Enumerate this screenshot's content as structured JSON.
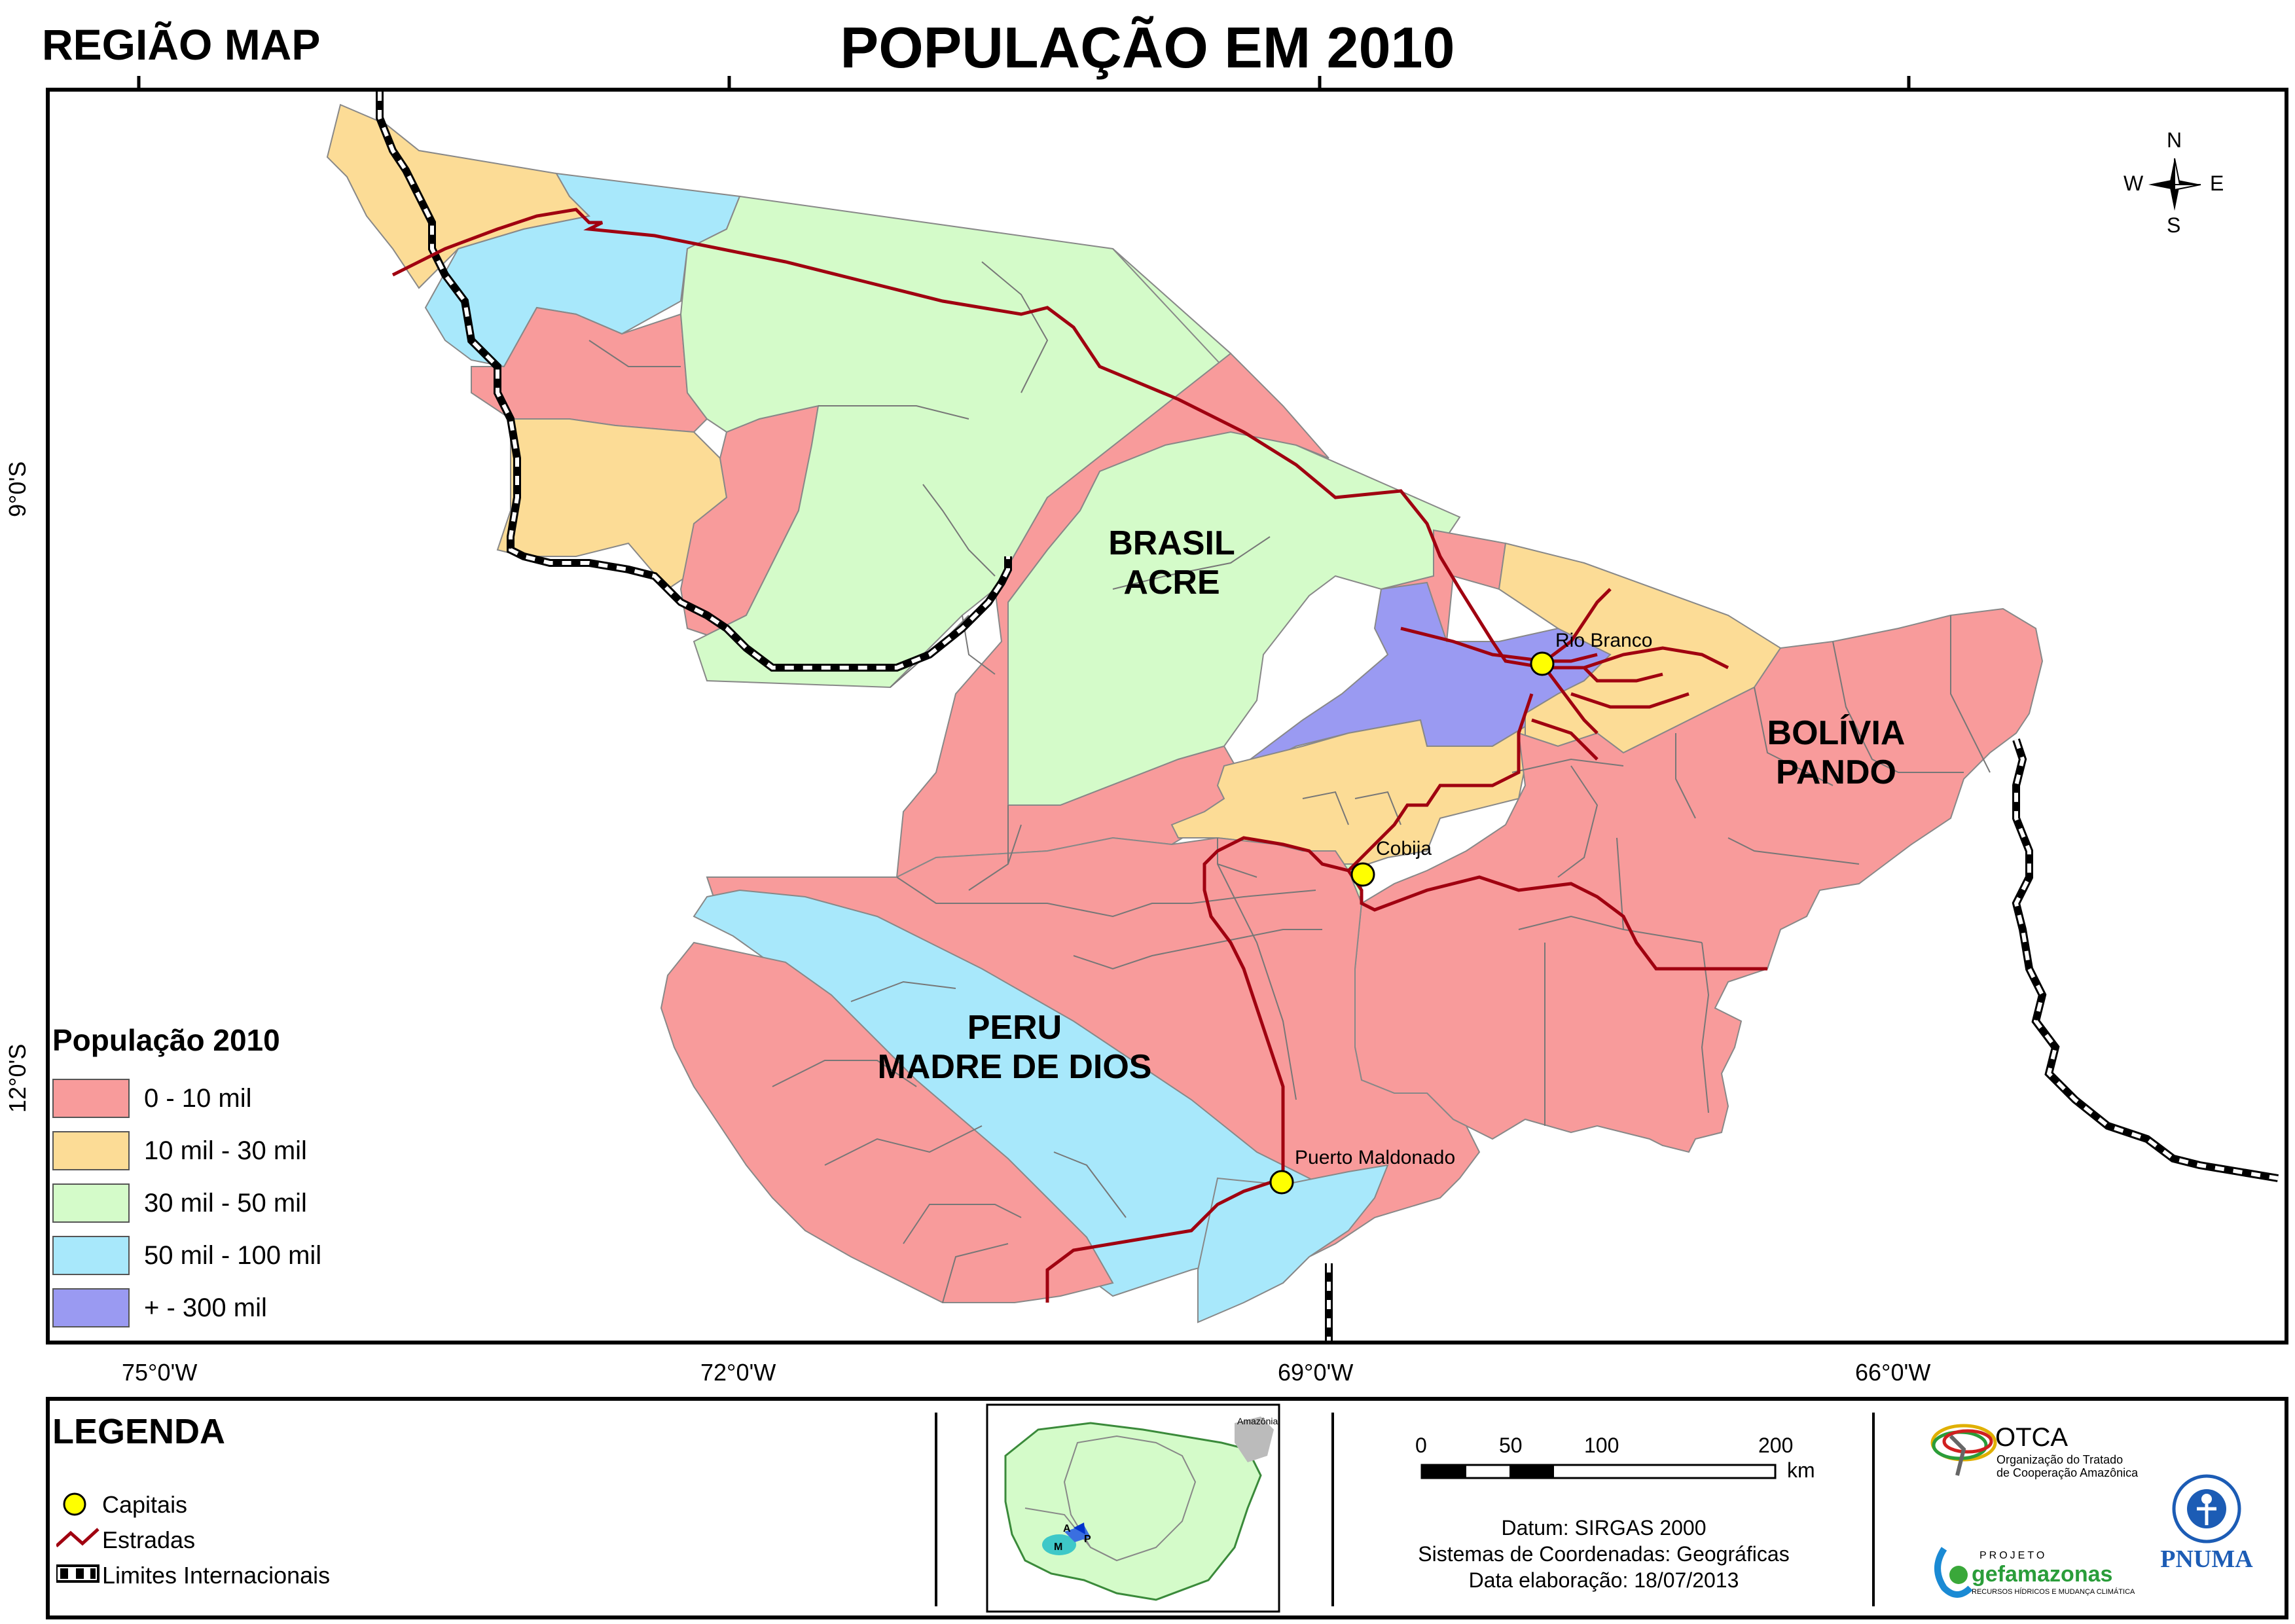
{
  "header": {
    "region_label": "REGIÃO MAP",
    "title": "POPULAÇÃO EM 2010"
  },
  "axes": {
    "lon_ticks": [
      "75°0'W",
      "72°0'W",
      "69°0'W",
      "66°0'W"
    ],
    "lat_ticks": [
      "9°0'S",
      "12°0'S"
    ]
  },
  "compass": {
    "n": "N",
    "s": "S",
    "e": "E",
    "w": "W"
  },
  "regions": {
    "brasil": [
      "BRASIL",
      "ACRE"
    ],
    "bolivia": [
      "BOLÍVIA",
      "PANDO"
    ],
    "peru": [
      "PERU",
      "MADRE DE DIOS"
    ]
  },
  "cities": [
    {
      "name": "Rio Branco"
    },
    {
      "name": "Cobija"
    },
    {
      "name": "Puerto Maldonado"
    }
  ],
  "population_legend": {
    "title": "População 2010",
    "classes": [
      {
        "label": "0 - 10 mil",
        "color": "#f89b9b"
      },
      {
        "label": "10 mil - 30 mil",
        "color": "#fcdc96"
      },
      {
        "label": "30 mil - 50 mil",
        "color": "#d4fbc9"
      },
      {
        "label": "50 mil - 100 mil",
        "color": "#a8e8fb"
      },
      {
        "label": "+ - 300 mil",
        "color": "#9a9af2"
      }
    ]
  },
  "legend": {
    "title": "LEGENDA",
    "items": [
      {
        "label": "Capitais",
        "icon": "capital-icon"
      },
      {
        "label": "Estradas",
        "icon": "road-icon"
      },
      {
        "label": "Limites Internacionais",
        "icon": "boundary-icon"
      }
    ]
  },
  "inset": {
    "label": "Amazônia",
    "markers": [
      "A",
      "P",
      "M"
    ]
  },
  "scale": {
    "ticks": [
      "0",
      "50",
      "100",
      "200"
    ],
    "unit": "km"
  },
  "metadata": {
    "datum": "Datum: SIRGAS 2000",
    "coords": "Sistemas de Coordenadas: Geográficas",
    "date": "Data elaboração: 18/07/2013"
  },
  "logos": {
    "otca_name": "OTCA",
    "otca_sub1": "Organização do Tratado",
    "otca_sub2": "de Cooperação Amazônica",
    "gef_small": "PROJETO",
    "gef_name": "gefamazonas",
    "gef_sub": "RECURSOS HÍDRICOS E MUDANÇA CLIMÁTICA",
    "pnuma": "PNUMA"
  },
  "colors": {
    "pink": "#f89b9b",
    "yellow": "#fcdc96",
    "green": "#d4fbc9",
    "blue": "#a8e8fb",
    "purple": "#9a9af2",
    "road": "#a00010",
    "capital": "#ffff00"
  }
}
